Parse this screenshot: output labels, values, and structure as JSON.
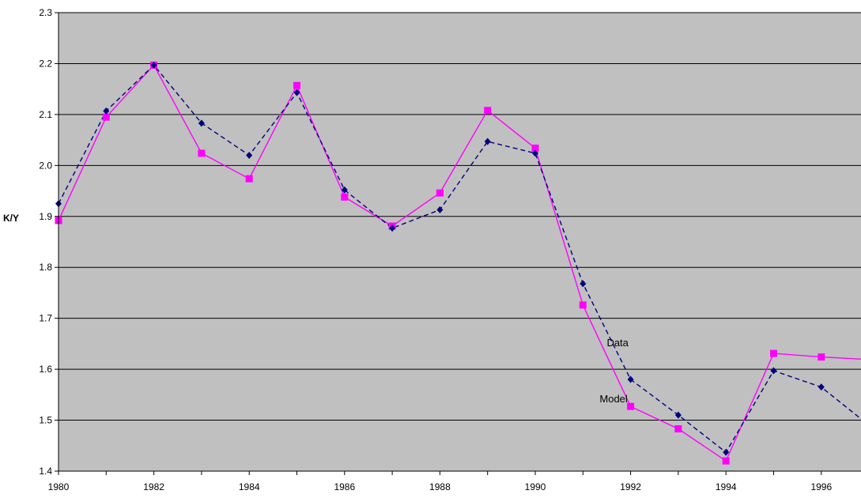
{
  "chart_data": {
    "type": "line",
    "title": "",
    "xlabel": "",
    "ylabel": "K/Y",
    "xlim": [
      1980,
      1997
    ],
    "ylim": [
      1.4,
      2.3
    ],
    "x_ticks": [
      "1980",
      "1982",
      "1984",
      "1986",
      "1988",
      "1990",
      "1992",
      "1994",
      "1996"
    ],
    "y_ticks": [
      "1.4",
      "1.5",
      "1.6",
      "1.7",
      "1.8",
      "1.9",
      "2.0",
      "2.1",
      "2.2",
      "2.3"
    ],
    "grid": "horizontal",
    "background_color": "#c0c0c0",
    "x": [
      1980,
      1981,
      1982,
      1983,
      1984,
      1985,
      1986,
      1987,
      1988,
      1989,
      1990,
      1991,
      1992,
      1993,
      1994,
      1995,
      1996,
      1997
    ],
    "series": [
      {
        "color": "#ff00ff",
        "line_style": "solid",
        "marker": "square",
        "values": [
          1.892,
          2.095,
          2.197,
          2.024,
          1.974,
          2.157,
          1.938,
          1.881,
          1.946,
          2.108,
          2.034,
          1.726,
          1.527,
          1.483,
          1.42,
          1.631,
          1.624,
          1.619
        ]
      },
      {
        "color": "#000080",
        "line_style": "dashed",
        "marker": "diamond",
        "values": [
          1.925,
          2.107,
          2.197,
          2.083,
          2.02,
          2.143,
          1.952,
          1.877,
          1.913,
          2.047,
          2.024,
          1.768,
          1.58,
          1.51,
          1.437,
          1.597,
          1.565,
          1.49
        ]
      }
    ],
    "annotations": [
      {
        "text": "Data",
        "x": 1991.5,
        "y": 1.645
      },
      {
        "text": "Model",
        "x": 1991.35,
        "y": 1.535
      }
    ]
  }
}
